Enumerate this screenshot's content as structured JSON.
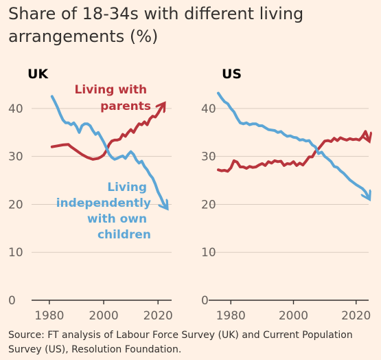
{
  "title": "Share of 18-34s with different living arrangements (%)",
  "source": "Source: FT analysis of Labour Force Survey (UK) and Current Population Survey (US), Resolution Foundation.",
  "colors": {
    "background": "#fff1e5",
    "parents": "#b8353d",
    "independent": "#5ca6d6",
    "grid": "#d9cbbf",
    "axis": "#33302e"
  },
  "chart_data": [
    {
      "type": "line",
      "title": "UK",
      "xlim": [
        1977,
        2025
      ],
      "ylim": [
        0,
        45
      ],
      "yticks": [
        0,
        10,
        20,
        30,
        40
      ],
      "xticks": [
        1980,
        2000,
        2020
      ],
      "grid": true,
      "series": [
        {
          "name": "Living with parents",
          "label_lines": [
            "Living with",
            "parents"
          ],
          "color": "#b8353d",
          "x": [
            1981,
            1983,
            1985,
            1987,
            1988,
            1989,
            1990,
            1991,
            1992,
            1993,
            1994,
            1995,
            1996,
            1997,
            1998,
            1999,
            2000,
            2001,
            2002,
            2003,
            2004,
            2005,
            2006,
            2007,
            2008,
            2009,
            2010,
            2011,
            2012,
            2013,
            2014,
            2015,
            2016,
            2017,
            2018,
            2019,
            2020,
            2021,
            2022
          ],
          "y": [
            32,
            32.2,
            32.4,
            32.5,
            32,
            31.6,
            31.2,
            30.8,
            30.4,
            30.1,
            29.8,
            29.6,
            29.4,
            29.5,
            29.6,
            29.9,
            30.3,
            31.2,
            32.5,
            33.2,
            33.4,
            33.4,
            33.6,
            34.6,
            34.2,
            35.0,
            35.6,
            35.0,
            36.0,
            36.8,
            36.6,
            37.2,
            36.6,
            37.8,
            38.4,
            38.2,
            39.0,
            40.0,
            40.8
          ]
        },
        {
          "name": "Living independently with own children",
          "label_lines": [
            "Living",
            "independently",
            "with own",
            "children"
          ],
          "color": "#5ca6d6",
          "x": [
            1981,
            1982,
            1983,
            1984,
            1985,
            1986,
            1987,
            1988,
            1989,
            1990,
            1991,
            1992,
            1993,
            1994,
            1995,
            1996,
            1997,
            1998,
            1999,
            2000,
            2001,
            2002,
            2003,
            2004,
            2005,
            2006,
            2007,
            2008,
            2009,
            2010,
            2011,
            2012,
            2013,
            2014,
            2015,
            2016,
            2017,
            2018,
            2019,
            2020,
            2021,
            2022,
            2023
          ],
          "y": [
            42.5,
            41.4,
            40.2,
            38.8,
            37.6,
            37.0,
            37.0,
            36.6,
            37.0,
            36.2,
            35.0,
            36.4,
            36.8,
            36.8,
            36.4,
            35.4,
            34.6,
            35.0,
            34.0,
            33.0,
            31.8,
            30.5,
            29.8,
            29.4,
            29.6,
            29.9,
            30.1,
            29.6,
            30.4,
            31.0,
            30.4,
            29.3,
            28.6,
            29.0,
            27.9,
            27.2,
            26.2,
            25.5,
            24.2,
            22.6,
            21.5,
            20.2,
            19.4
          ]
        }
      ]
    },
    {
      "type": "line",
      "title": "US",
      "xlim": [
        1976,
        2024
      ],
      "ylim": [
        0,
        45
      ],
      "yticks": [
        0,
        10,
        20,
        30,
        40
      ],
      "xticks": [
        1980,
        2000,
        2020
      ],
      "grid": true,
      "series": [
        {
          "name": "Living with parents",
          "color": "#b8353d",
          "x": [
            1976,
            1977,
            1978,
            1979,
            1980,
            1981,
            1982,
            1983,
            1984,
            1985,
            1986,
            1987,
            1988,
            1989,
            1990,
            1991,
            1992,
            1993,
            1994,
            1995,
            1996,
            1997,
            1998,
            1999,
            2000,
            2001,
            2002,
            2003,
            2004,
            2005,
            2006,
            2007,
            2008,
            2009,
            2010,
            2011,
            2012,
            2013,
            2014,
            2015,
            2016,
            2017,
            2018,
            2019,
            2020,
            2021,
            2022,
            2023,
            2024
          ],
          "y": [
            27.2,
            27.0,
            27.1,
            26.9,
            27.6,
            29.1,
            28.8,
            27.8,
            27.8,
            27.5,
            27.9,
            27.7,
            27.8,
            28.2,
            28.5,
            28.1,
            28.9,
            28.6,
            29.1,
            28.9,
            29.0,
            28.1,
            28.5,
            28.4,
            28.9,
            28.1,
            28.6,
            28.2,
            29.0,
            29.9,
            29.9,
            31.0,
            31.6,
            32.4,
            33.2,
            33.3,
            33.1,
            33.8,
            33.3,
            33.9,
            33.6,
            33.4,
            33.7,
            33.5,
            33.6,
            33.4,
            34.1,
            35.2,
            33.5
          ]
        },
        {
          "name": "Living independently with own children",
          "color": "#5ca6d6",
          "x": [
            1976,
            1977,
            1978,
            1979,
            1980,
            1981,
            1982,
            1983,
            1984,
            1985,
            1986,
            1987,
            1988,
            1989,
            1990,
            1991,
            1992,
            1993,
            1994,
            1995,
            1996,
            1997,
            1998,
            1999,
            2000,
            2001,
            2002,
            2003,
            2004,
            2005,
            2006,
            2007,
            2008,
            2009,
            2010,
            2011,
            2012,
            2013,
            2014,
            2015,
            2016,
            2017,
            2018,
            2019,
            2020,
            2021,
            2022,
            2023,
            2024
          ],
          "y": [
            43.2,
            42.2,
            41.4,
            41.0,
            40.0,
            39.3,
            38.0,
            37.0,
            36.8,
            37.0,
            36.6,
            36.8,
            36.8,
            36.4,
            36.4,
            36.0,
            35.6,
            35.5,
            35.4,
            35.0,
            35.2,
            34.6,
            34.2,
            34.3,
            34.0,
            33.9,
            33.4,
            33.5,
            33.2,
            33.3,
            32.4,
            32.0,
            30.6,
            30.9,
            30.0,
            29.5,
            28.9,
            27.9,
            27.7,
            27.0,
            26.5,
            25.8,
            25.1,
            24.6,
            24.1,
            23.7,
            23.3,
            22.6,
            21.4
          ]
        }
      ]
    }
  ]
}
